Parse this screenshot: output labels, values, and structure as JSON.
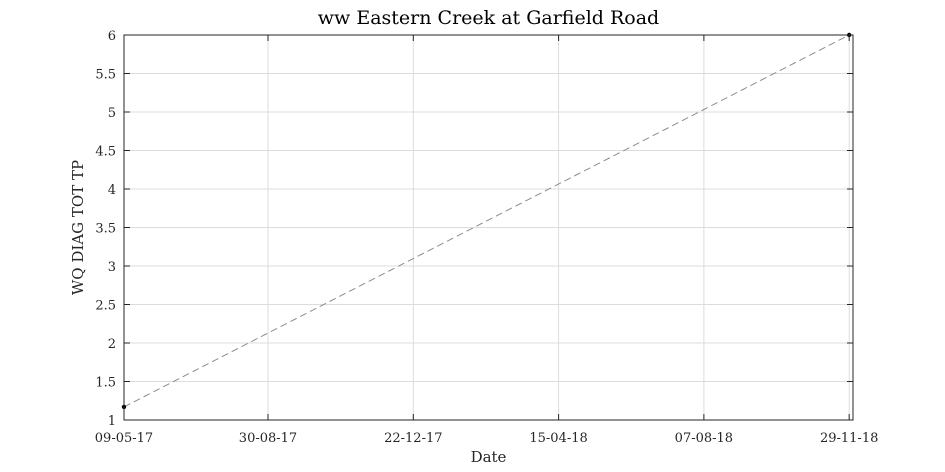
{
  "chart_data": {
    "type": "line",
    "title": "ww Eastern Creek at Garfield Road",
    "xlabel": "Date",
    "ylabel": "WQ DIAG TOT TP",
    "x_ticks": [
      "09-05-17",
      "30-08-17",
      "22-12-17",
      "15-04-18",
      "07-08-18",
      "29-11-18"
    ],
    "y_ticks": [
      "1",
      "1.5",
      "2",
      "2.5",
      "3",
      "3.5",
      "4",
      "4.5",
      "5",
      "5.5",
      "6"
    ],
    "xlim": [
      "2017-05-09",
      "2018-12-02"
    ],
    "ylim": [
      1,
      6
    ],
    "grid": true,
    "series": [
      {
        "style": "dashed",
        "color": "#8c8c8c",
        "x": [
          "2017-05-09",
          "2018-11-29"
        ],
        "y": [
          1.17,
          6.0
        ]
      }
    ]
  }
}
